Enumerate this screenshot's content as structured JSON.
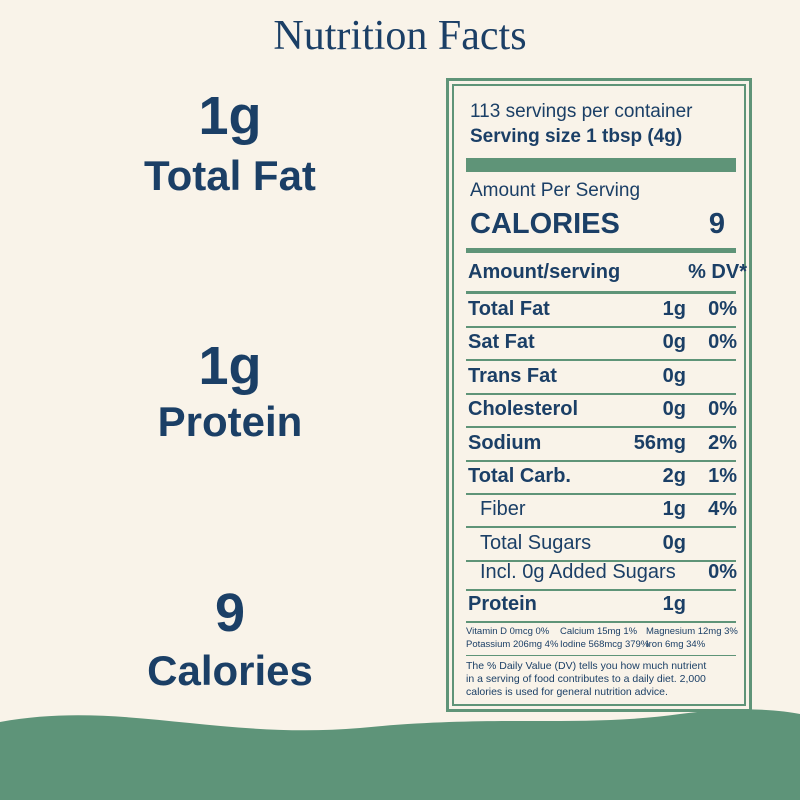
{
  "title": "Nutrition Facts",
  "highlights": [
    {
      "value": "1g",
      "label": "Total Fat"
    },
    {
      "value": "1g",
      "label": "Protein"
    },
    {
      "value": "9",
      "label": "Calories"
    }
  ],
  "label": {
    "servings": "113 servings per container",
    "serving_size": "Serving size 1 tbsp (4g)",
    "amount_per_serving": "Amount Per Serving",
    "calories_label": "CALORIES",
    "calories": "9",
    "header": {
      "name": "Amount/serving",
      "dv": "% DV*"
    },
    "rows": [
      {
        "name": "Total Fat",
        "amount": "1g",
        "dv": "0%"
      },
      {
        "name": "Sat Fat",
        "amount": "0g",
        "dv": "0%"
      },
      {
        "name": "Trans Fat",
        "amount": "0g"
      },
      {
        "name": "Cholesterol",
        "amount": "0g",
        "dv": "0%"
      },
      {
        "name": "Sodium",
        "amount": "56mg",
        "dv": "2%"
      },
      {
        "name": "Total Carb.",
        "amount": "2g",
        "dv": "1%"
      },
      {
        "name": "Fiber",
        "amount": "1g",
        "dv": "4%"
      },
      {
        "name": "Total Sugars",
        "amount": "0g"
      },
      {
        "name": "Incl. 0g Added Sugars",
        "dv": "0%"
      },
      {
        "name": "Protein",
        "amount": "1g"
      }
    ],
    "vitamins": [
      "Vitamin D 0mcg 0%",
      "Calcium 15mg 1%",
      "Magnesium 12mg 3%",
      "Potassium 206mg 4%",
      "Iodine 568mcg 379%",
      "Iron 6mg 34%"
    ],
    "footnote": [
      "The % Daily Value (DV) tells you how much nutrient",
      "in a serving of food contributes to a daily diet. 2,000",
      "calories is used for general nutrition advice."
    ]
  }
}
